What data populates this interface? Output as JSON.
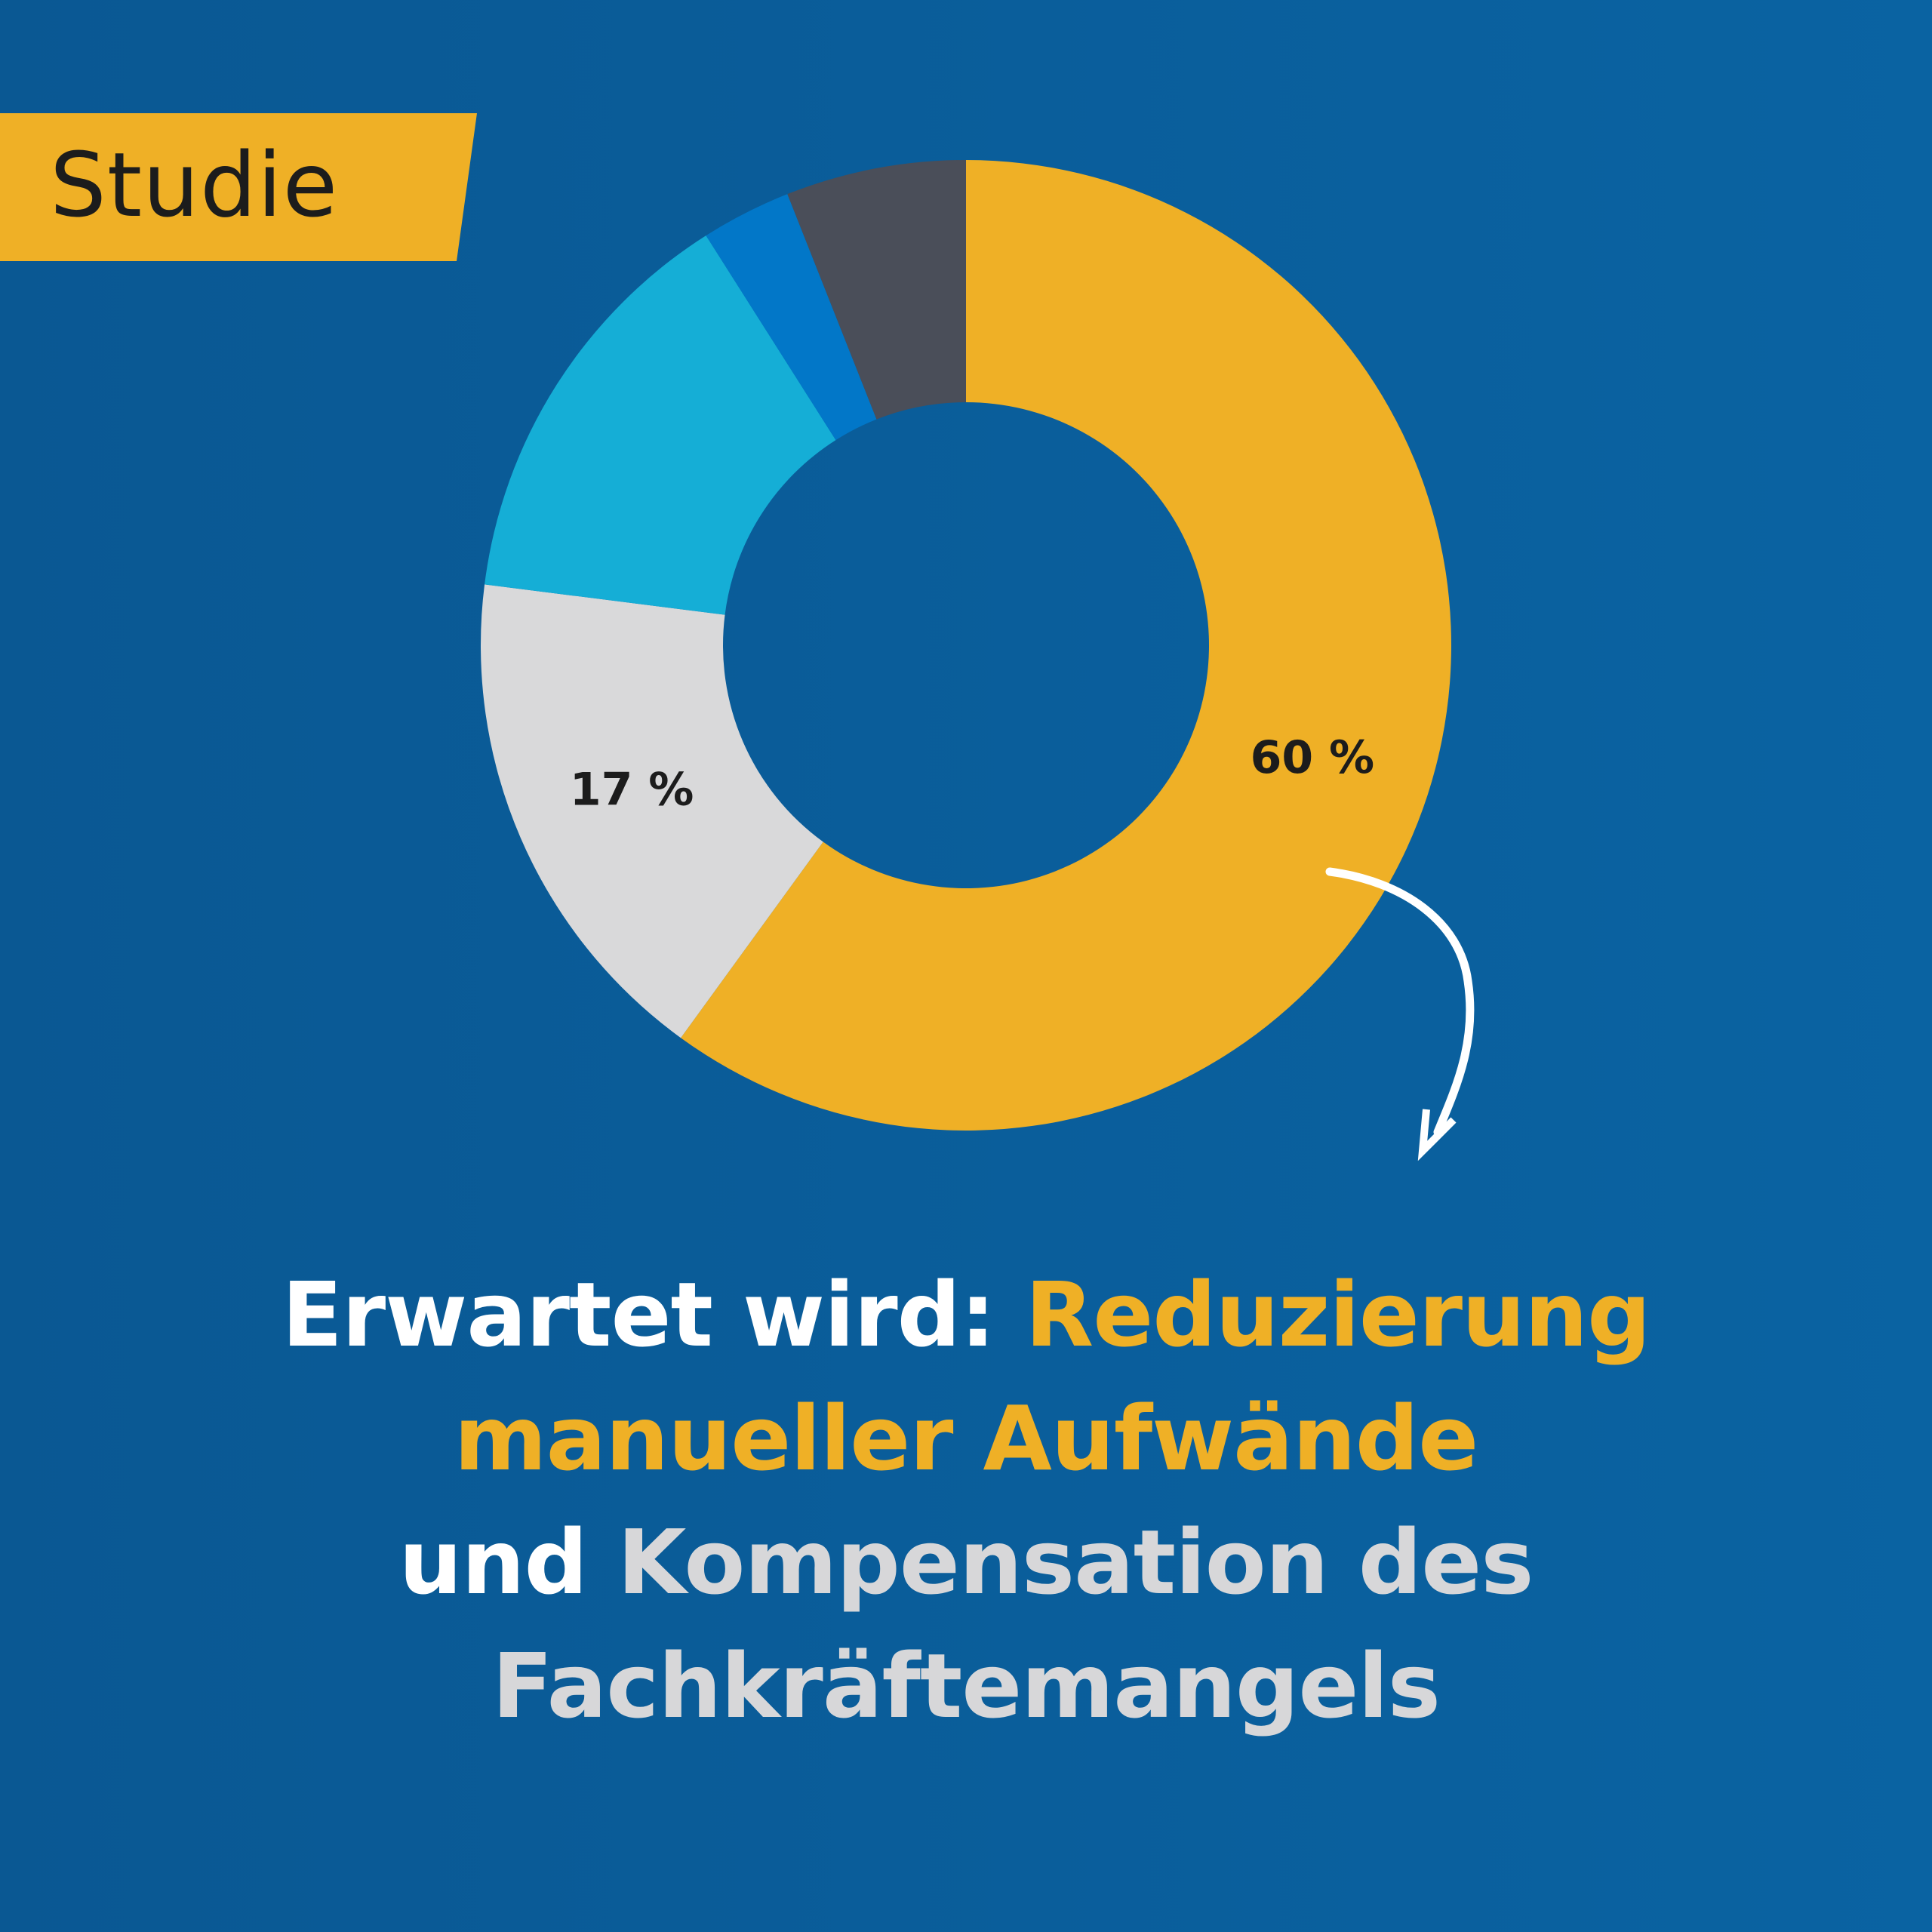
{
  "tag": {
    "label": "Studie"
  },
  "chart_data": {
    "type": "pie",
    "variant": "donut",
    "start": "top",
    "direction": "clockwise",
    "slices": [
      {
        "value": 60,
        "label": "60 %",
        "color": "#efb026"
      },
      {
        "value": 17,
        "label": "17 %",
        "color": "#d9d9da"
      },
      {
        "value": 14,
        "label": "",
        "color": "#15aed6"
      },
      {
        "value": 3,
        "label": "",
        "color": "#0277c8"
      },
      {
        "value": 6,
        "label": "",
        "color": "#4a4e59"
      }
    ]
  },
  "headline": {
    "line1_a": "Erwartet wird: ",
    "line1_b": "Reduzierung",
    "line2": "manueller Aufwände",
    "line3_a": "und ",
    "line3_b": "Kompensation des",
    "line4": "Fachkräftemangels"
  },
  "colors": {
    "background": "#0a5e9c",
    "accent": "#efb026",
    "white": "#ffffff",
    "light_gray": "#d7d7d9"
  }
}
